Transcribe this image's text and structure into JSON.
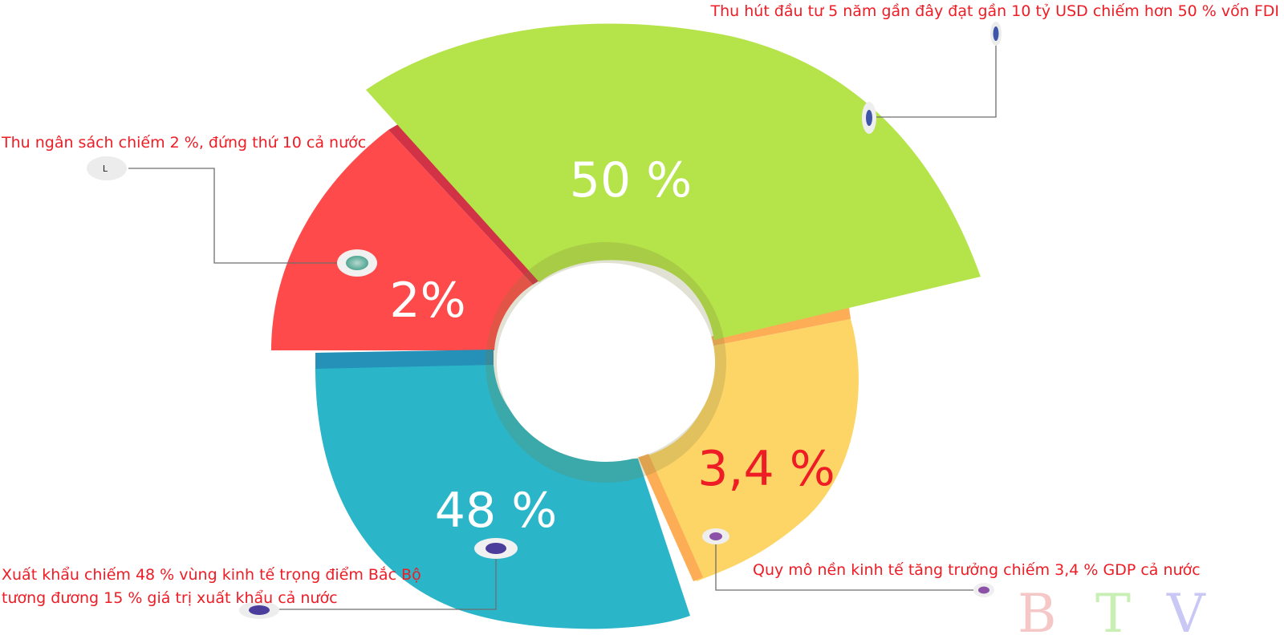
{
  "chart_data": {
    "type": "pie",
    "variant": "exploded-donut",
    "title": "",
    "slices": [
      {
        "label": "50 %",
        "value": 50,
        "color": "#b5e34a",
        "label_color": "#ffffff",
        "annotation": [
          "Thu hút đầu tư 5 năm gần đây đạt gần 10 tỷ  USD chiếm hơn 50 % vốn FDI"
        ]
      },
      {
        "label": "3,4 %",
        "value": 3.4,
        "color": "#fdd567",
        "label_color": "#ee1c25",
        "annotation": [
          "Quy mô nền kinh tế tăng trưởng chiếm 3,4 % GDP cả nước"
        ]
      },
      {
        "label": "48 %",
        "value": 48,
        "color": "#2ab5c9",
        "label_color": "#ffffff",
        "annotation": [
          "Xuất khẩu chiếm 48 %  vùng kinh tế trọng điểm Bắc Bộ",
          "tương đương 15 %  giá trị xuất khẩu cả nước"
        ]
      },
      {
        "label": "2%",
        "value": 2,
        "color": "#fe4a4a",
        "label_color": "#ffffff",
        "annotation": [
          "Thu ngân sách chiếm 2 %, đứng thứ 10 cả nước"
        ]
      }
    ],
    "annotation_color": "#ee1c25",
    "marker_letter": "L"
  },
  "watermark": {
    "letters": [
      "B",
      "T",
      "V"
    ],
    "colors": [
      "#f6c7c7",
      "#c8efb4",
      "#c9c7f6"
    ]
  }
}
